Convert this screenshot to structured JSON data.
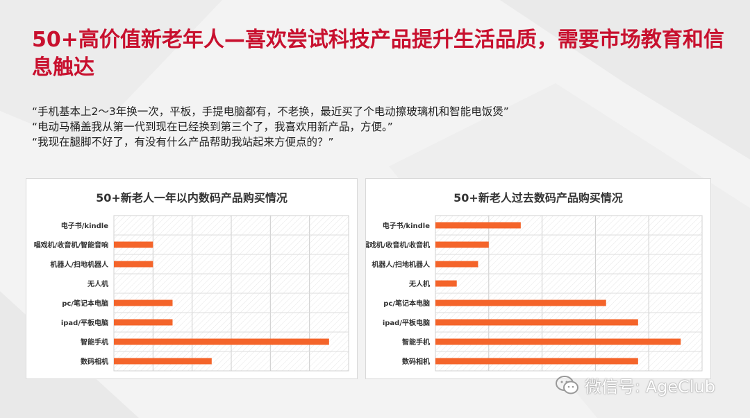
{
  "title": "50+高价值新老年人—喜欢尝试科技产品提升生活品质，需要市场教育和信息触达",
  "quotes": [
    "“手机基本上2～3年换一次，平板，手提电脑都有，不老换，最近买了个电动擦玻璃机和智能电饭煲”",
    "“电动马桶盖我从第一代到现在已经换到第三个了，我喜欢用新产品，方便。”",
    "“我现在腿脚不好了，有没有什么产品帮助我站起来方便点的？”"
  ],
  "watermark": {
    "text": "微信号: AgeClub",
    "icon": "wechat-icon"
  },
  "colors": {
    "title": "#c8102e",
    "bar": "#f4642a"
  },
  "chart_data": [
    {
      "type": "bar",
      "orientation": "horizontal",
      "title": "50+新老人一年以内数码产品购买情况",
      "categories": [
        "电子书/kindle",
        "唱戏机/收音机/智能音响",
        "机器人/扫地机器人",
        "无人机",
        "pc/笔记本电脑",
        "ipad/平板电脑",
        "智能手机",
        "数码相机"
      ],
      "values": [
        0,
        2,
        2,
        0,
        3,
        3,
        11,
        5
      ],
      "xlim": [
        0,
        12
      ],
      "grid": true,
      "tick_labels_shown": false
    },
    {
      "type": "bar",
      "orientation": "horizontal",
      "title": "50+新老人过去数码产品购买情况",
      "categories": [
        "电子书/kindle",
        "唱戏机/收音机/收音机",
        "机器人/扫地机器人",
        "无人机",
        "pc/笔记本电脑",
        "ipad/平板电脑",
        "智能手机",
        "数码相机"
      ],
      "values": [
        8,
        5,
        4,
        2,
        16,
        19,
        23,
        19
      ],
      "xlim": [
        0,
        25
      ],
      "grid": true,
      "tick_labels_shown": false
    }
  ]
}
